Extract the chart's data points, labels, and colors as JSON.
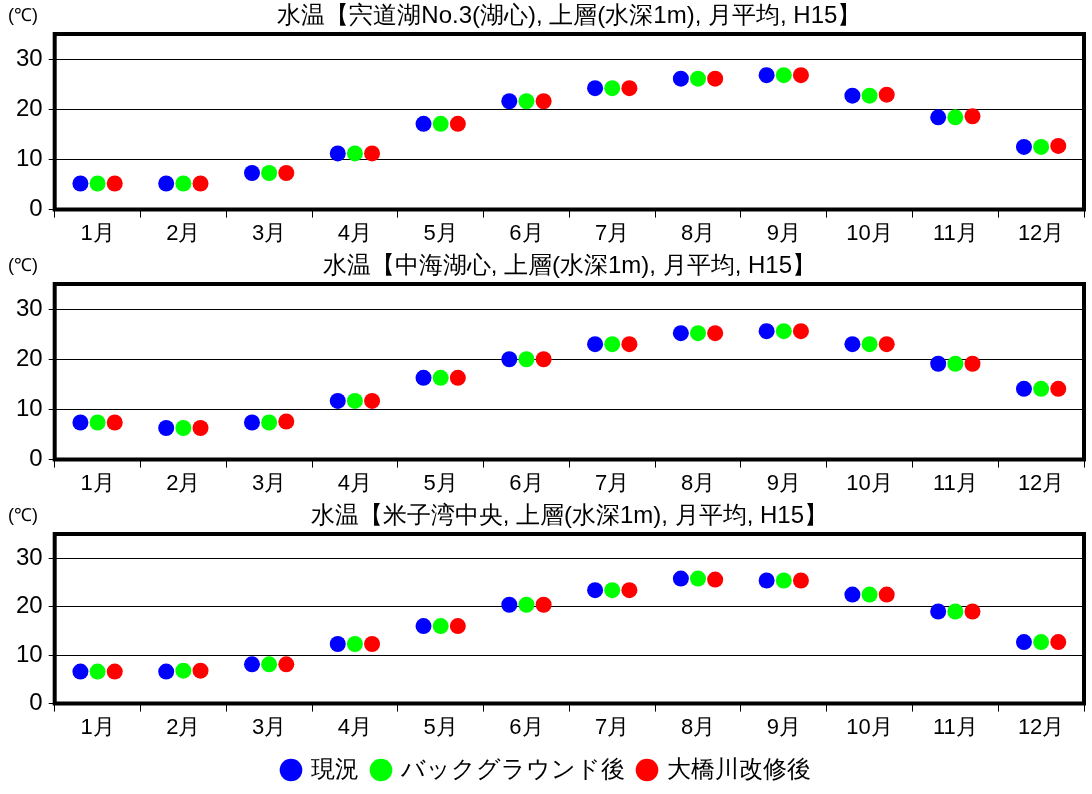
{
  "chart_data": [
    {
      "type": "scatter",
      "title": "水温【宍道湖No.3(湖心), 上層(水深1m), 月平均, H15】",
      "ylabel": "(℃)",
      "categories": [
        "1月",
        "2月",
        "3月",
        "4月",
        "5月",
        "6月",
        "7月",
        "8月",
        "9月",
        "10月",
        "11月",
        "12月"
      ],
      "ylim": [
        0,
        35
      ],
      "yticks": [
        0,
        10,
        20,
        30
      ],
      "grid": "y",
      "legend": false,
      "marker": "circle",
      "series": [
        {
          "color": "#0000ff",
          "values": [
            5.2,
            5.2,
            7.3,
            11.2,
            17.1,
            21.6,
            24.2,
            26.1,
            26.8,
            22.7,
            18.4,
            12.5
          ]
        },
        {
          "color": "#00ff00",
          "values": [
            5.2,
            5.2,
            7.3,
            11.2,
            17.1,
            21.6,
            24.2,
            26.1,
            26.8,
            22.7,
            18.4,
            12.5
          ]
        },
        {
          "color": "#ff0000",
          "values": [
            5.2,
            5.2,
            7.3,
            11.2,
            17.1,
            21.6,
            24.2,
            26.1,
            26.8,
            22.9,
            18.6,
            12.7
          ]
        }
      ]
    },
    {
      "type": "scatter",
      "title": "水温【中海湖心, 上層(水深1m), 月平均, H15】",
      "ylabel": "(℃)",
      "categories": [
        "1月",
        "2月",
        "3月",
        "4月",
        "5月",
        "6月",
        "7月",
        "8月",
        "9月",
        "10月",
        "11月",
        "12月"
      ],
      "ylim": [
        0,
        35
      ],
      "yticks": [
        0,
        10,
        20,
        30
      ],
      "grid": "y",
      "legend": false,
      "marker": "circle",
      "series": [
        {
          "color": "#0000ff",
          "values": [
            7.4,
            6.3,
            7.4,
            11.7,
            16.3,
            20.0,
            23.0,
            25.2,
            25.6,
            23.0,
            19.1,
            14.1
          ]
        },
        {
          "color": "#00ff00",
          "values": [
            7.4,
            6.3,
            7.4,
            11.7,
            16.3,
            20.0,
            23.0,
            25.2,
            25.6,
            23.0,
            19.1,
            14.1
          ]
        },
        {
          "color": "#ff0000",
          "values": [
            7.4,
            6.3,
            7.6,
            11.7,
            16.3,
            20.0,
            23.0,
            25.2,
            25.6,
            23.0,
            19.1,
            14.1
          ]
        }
      ]
    },
    {
      "type": "scatter",
      "title": "水温【米子湾中央, 上層(水深1m), 月平均, H15】",
      "ylabel": "(℃)",
      "categories": [
        "1月",
        "2月",
        "3月",
        "4月",
        "5月",
        "6月",
        "7月",
        "8月",
        "9月",
        "10月",
        "11月",
        "12月"
      ],
      "ylim": [
        0,
        35
      ],
      "yticks": [
        0,
        10,
        20,
        30
      ],
      "grid": "y",
      "legend": "bottom",
      "marker": "circle",
      "series": [
        {
          "name": "現況",
          "color": "#0000ff",
          "values": [
            6.6,
            6.6,
            8.1,
            12.3,
            16.0,
            20.4,
            23.4,
            25.8,
            25.4,
            22.5,
            19.0,
            12.7
          ]
        },
        {
          "name": "バックグラウンド後",
          "color": "#00ff00",
          "values": [
            6.6,
            6.8,
            8.1,
            12.3,
            16.0,
            20.4,
            23.4,
            25.8,
            25.4,
            22.5,
            19.0,
            12.7
          ]
        },
        {
          "name": "大橋川改修後",
          "color": "#ff0000",
          "values": [
            6.6,
            6.8,
            8.1,
            12.3,
            16.0,
            20.4,
            23.4,
            25.6,
            25.4,
            22.5,
            19.0,
            12.7
          ]
        }
      ]
    }
  ]
}
